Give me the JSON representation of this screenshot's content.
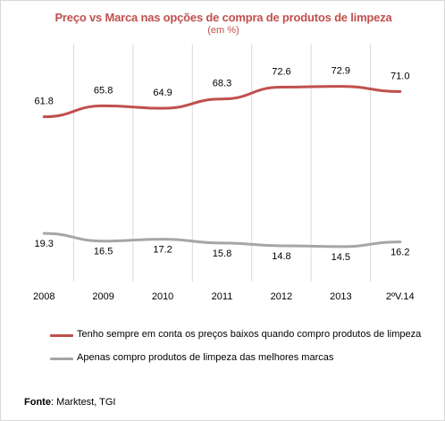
{
  "chart_data": {
    "type": "line",
    "title": "Preço vs Marca nas opções de compra de produtos de limpeza",
    "subtitle": "(em %)",
    "categories": [
      "2008",
      "2009",
      "2010",
      "2011",
      "2012",
      "2013",
      "2ºV.14"
    ],
    "series": [
      {
        "name": "Tenho sempre em conta os preços baixos quando compro produtos de limpeza",
        "values": [
          61.8,
          65.8,
          64.9,
          68.3,
          72.6,
          72.9,
          71.0
        ],
        "labels": [
          "61.8",
          "65.8",
          "64.9",
          "68.3",
          "72.6",
          "72.9",
          "71.0"
        ],
        "color": "#c0504d"
      },
      {
        "name": "Apenas compro produtos de limpeza das melhores marcas",
        "values": [
          19.3,
          16.5,
          17.2,
          15.8,
          14.8,
          14.5,
          16.2
        ],
        "labels": [
          "19.3",
          "16.5",
          "17.2",
          "15.8",
          "14.8",
          "14.5",
          "16.2"
        ],
        "color": "#a6a6a6"
      }
    ],
    "grid": "vertical category separators",
    "legend_position": "bottom-left"
  },
  "source": {
    "label": "Fonte",
    "text": ": Marktest, TGI"
  }
}
